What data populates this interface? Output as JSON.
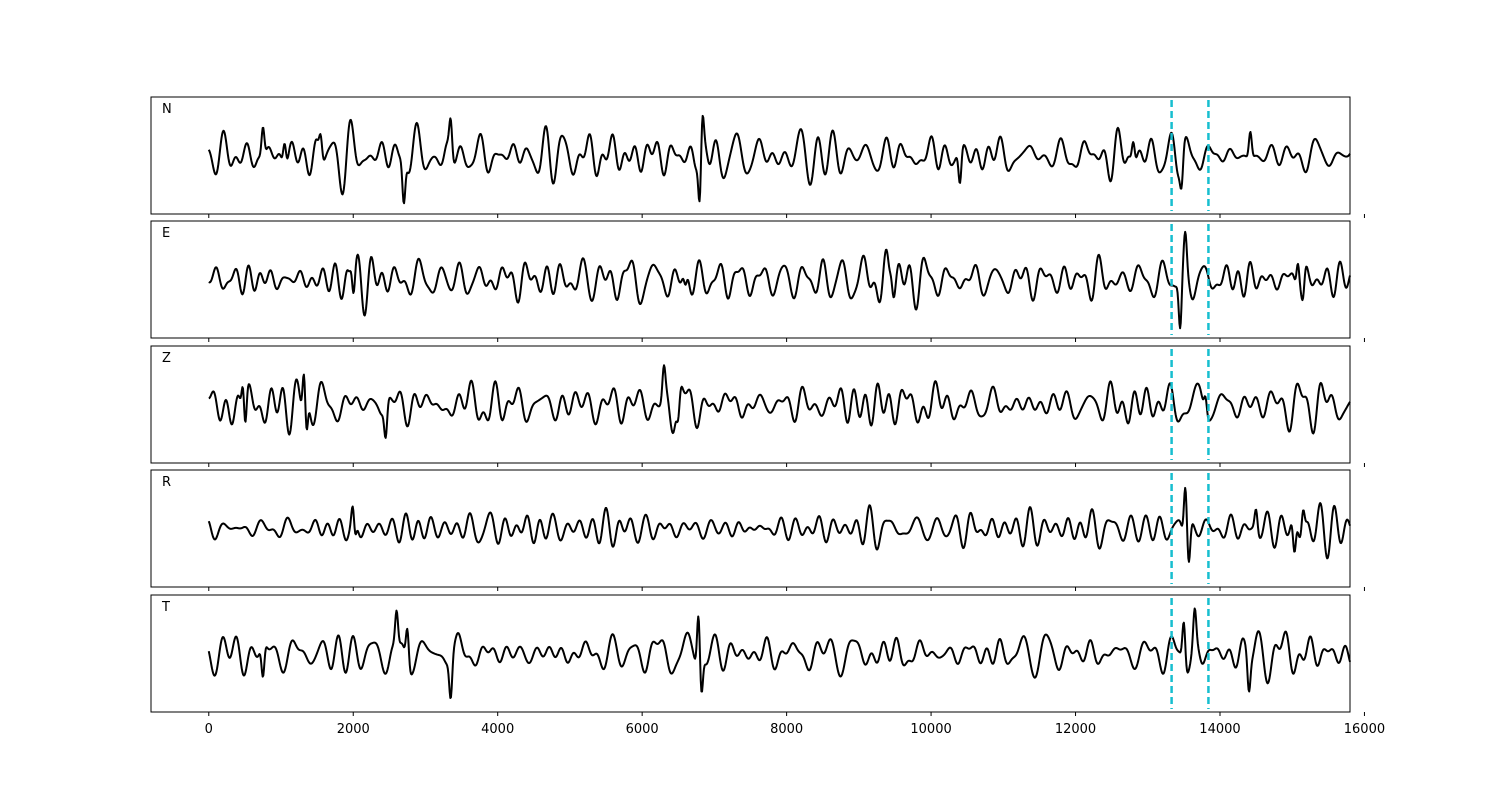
{
  "chart_data": {
    "type": "line",
    "title": "",
    "xlabel": "",
    "ylabel": "",
    "xlim": [
      -800,
      15800
    ],
    "xticks": [
      0,
      2000,
      4000,
      6000,
      8000,
      10000,
      12000,
      14000,
      16000
    ],
    "xtick_labels": [
      "0",
      "2000",
      "4000",
      "6000",
      "8000",
      "10000",
      "12000",
      "14000",
      "16000"
    ],
    "grid": false,
    "legend": "none",
    "colors": {
      "trace": "#000000",
      "marker": "#17becf"
    },
    "marker_lines": [
      13330,
      13840
    ],
    "panels": [
      {
        "label": "N",
        "samples_x": [
          0,
          15800
        ],
        "peaks": [
          {
            "x": 750,
            "value": 0.5
          },
          {
            "x": 1050,
            "value": 0.42
          },
          {
            "x": 1550,
            "value": 0.36
          },
          {
            "x": 2700,
            "value": -0.7
          },
          {
            "x": 3350,
            "value": 0.55
          },
          {
            "x": 6800,
            "value": -0.88
          },
          {
            "x": 6830,
            "value": 0.54
          },
          {
            "x": 10400,
            "value": -0.56
          },
          {
            "x": 12800,
            "value": 0.38
          },
          {
            "x": 13470,
            "value": -0.44
          },
          {
            "x": 14420,
            "value": 0.44
          }
        ]
      },
      {
        "label": "E",
        "samples_x": [
          0,
          15800
        ],
        "peaks": [
          {
            "x": 1980,
            "value": 0.3
          },
          {
            "x": 2000,
            "value": -0.38
          },
          {
            "x": 6600,
            "value": -0.25
          },
          {
            "x": 9450,
            "value": 0.32
          },
          {
            "x": 13450,
            "value": -0.86
          },
          {
            "x": 13520,
            "value": 0.52
          },
          {
            "x": 15080,
            "value": 0.52
          },
          {
            "x": 15150,
            "value": -0.4
          }
        ]
      },
      {
        "label": "Z",
        "samples_x": [
          0,
          15800
        ],
        "peaks": [
          {
            "x": 500,
            "value": -0.68
          },
          {
            "x": 480,
            "value": 0.6
          },
          {
            "x": 1320,
            "value": 0.7
          },
          {
            "x": 1350,
            "value": -0.58
          },
          {
            "x": 2450,
            "value": -0.52
          },
          {
            "x": 6300,
            "value": 0.45
          },
          {
            "x": 6500,
            "value": -0.42
          },
          {
            "x": 13800,
            "value": 0.3
          }
        ]
      },
      {
        "label": "R",
        "samples_x": [
          0,
          15800
        ],
        "peaks": [
          {
            "x": 2000,
            "value": 0.35
          },
          {
            "x": 2020,
            "value": -0.4
          },
          {
            "x": 13520,
            "value": 0.86
          },
          {
            "x": 13570,
            "value": -0.55
          },
          {
            "x": 14500,
            "value": 0.35
          },
          {
            "x": 15030,
            "value": -0.58
          },
          {
            "x": 15150,
            "value": 0.4
          }
        ]
      },
      {
        "label": "T",
        "samples_x": [
          0,
          15800
        ],
        "peaks": [
          {
            "x": 750,
            "value": -0.55
          },
          {
            "x": 2600,
            "value": 0.55
          },
          {
            "x": 2750,
            "value": 0.58
          },
          {
            "x": 3350,
            "value": -0.62
          },
          {
            "x": 6780,
            "value": 0.86
          },
          {
            "x": 6820,
            "value": -0.58
          },
          {
            "x": 13500,
            "value": 0.7
          },
          {
            "x": 13650,
            "value": 0.52
          },
          {
            "x": 14400,
            "value": -0.52
          }
        ]
      }
    ]
  }
}
